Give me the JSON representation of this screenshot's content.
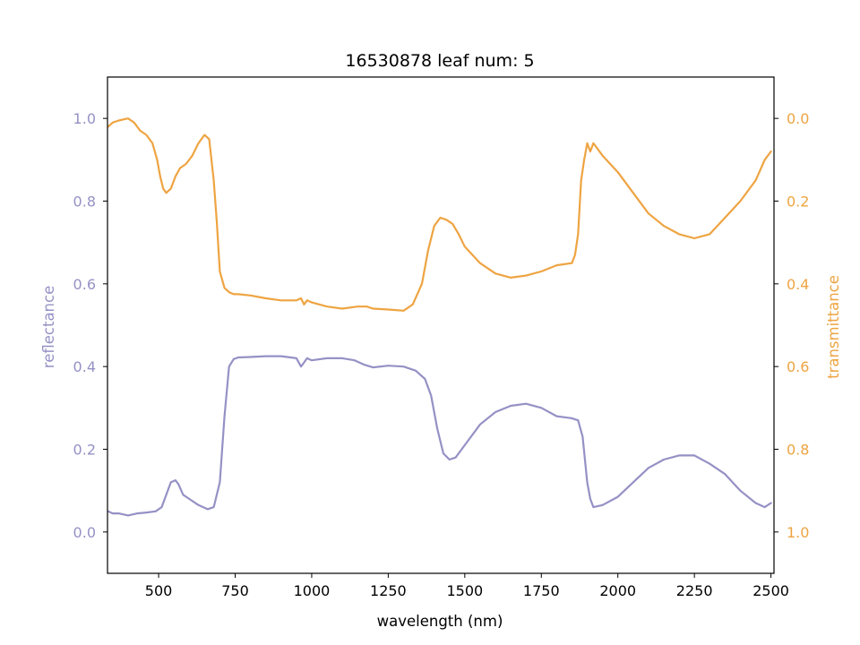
{
  "chart_data": {
    "type": "line",
    "title": "16530878 leaf num: 5",
    "xlabel": "wavelength (nm)",
    "xlim": [
      333,
      2510
    ],
    "x_ticks": [
      500,
      750,
      1000,
      1250,
      1500,
      1750,
      2000,
      2250,
      2500
    ],
    "grid": false,
    "legend": "none",
    "axes": {
      "left": {
        "label": "reflectance",
        "range": [
          -0.1,
          1.1
        ],
        "ticks": [
          "0.0",
          "0.2",
          "0.4",
          "0.6",
          "0.8",
          "1.0"
        ],
        "color": "#9591c5"
      },
      "right": {
        "label": "transmittance",
        "range": [
          -0.1,
          1.1
        ],
        "inverted": true,
        "ticks": [
          "0.0",
          "0.2",
          "0.4",
          "0.6",
          "0.8",
          "1.0"
        ],
        "color": "#eea442"
      }
    },
    "series": [
      {
        "axis": "left",
        "color": "#9591c5",
        "x": [
          335,
          350,
          370,
          400,
          430,
          460,
          490,
          510,
          525,
          540,
          555,
          565,
          580,
          600,
          630,
          660,
          680,
          700,
          715,
          730,
          745,
          760,
          800,
          850,
          900,
          950,
          965,
          975,
          985,
          1000,
          1050,
          1100,
          1140,
          1170,
          1200,
          1250,
          1300,
          1340,
          1370,
          1390,
          1410,
          1430,
          1450,
          1470,
          1500,
          1550,
          1600,
          1650,
          1700,
          1750,
          1800,
          1850,
          1870,
          1885,
          1900,
          1910,
          1920,
          1950,
          2000,
          2050,
          2100,
          2150,
          2200,
          2250,
          2300,
          2350,
          2400,
          2450,
          2480,
          2500
        ],
        "values": [
          0.05,
          0.045,
          0.045,
          0.04,
          0.045,
          0.047,
          0.05,
          0.06,
          0.09,
          0.12,
          0.125,
          0.115,
          0.09,
          0.08,
          0.065,
          0.055,
          0.06,
          0.12,
          0.28,
          0.4,
          0.418,
          0.422,
          0.423,
          0.425,
          0.425,
          0.42,
          0.4,
          0.41,
          0.42,
          0.415,
          0.42,
          0.42,
          0.415,
          0.405,
          0.398,
          0.402,
          0.4,
          0.39,
          0.37,
          0.33,
          0.25,
          0.19,
          0.175,
          0.18,
          0.21,
          0.26,
          0.29,
          0.305,
          0.31,
          0.3,
          0.28,
          0.275,
          0.27,
          0.23,
          0.12,
          0.08,
          0.06,
          0.065,
          0.085,
          0.12,
          0.155,
          0.175,
          0.185,
          0.185,
          0.165,
          0.14,
          0.1,
          0.07,
          0.06,
          0.07
        ]
      },
      {
        "axis": "right",
        "color": "#eea442",
        "x": [
          335,
          350,
          370,
          400,
          420,
          440,
          460,
          480,
          495,
          505,
          515,
          525,
          540,
          555,
          570,
          590,
          610,
          630,
          650,
          665,
          680,
          690,
          700,
          715,
          730,
          745,
          760,
          800,
          850,
          900,
          950,
          965,
          975,
          985,
          1000,
          1050,
          1100,
          1150,
          1180,
          1200,
          1250,
          1300,
          1330,
          1360,
          1380,
          1400,
          1420,
          1440,
          1460,
          1480,
          1500,
          1550,
          1600,
          1650,
          1700,
          1750,
          1800,
          1850,
          1860,
          1870,
          1880,
          1890,
          1900,
          1910,
          1920,
          1950,
          2000,
          2050,
          2100,
          2150,
          2200,
          2250,
          2300,
          2350,
          2400,
          2450,
          2480,
          2500
        ],
        "values": [
          0.02,
          0.01,
          0.005,
          0.0,
          0.01,
          0.03,
          0.04,
          0.06,
          0.1,
          0.14,
          0.17,
          0.18,
          0.17,
          0.14,
          0.12,
          0.11,
          0.09,
          0.06,
          0.04,
          0.05,
          0.15,
          0.25,
          0.37,
          0.41,
          0.42,
          0.425,
          0.425,
          0.428,
          0.435,
          0.44,
          0.44,
          0.435,
          0.45,
          0.44,
          0.445,
          0.455,
          0.46,
          0.455,
          0.455,
          0.46,
          0.462,
          0.465,
          0.45,
          0.4,
          0.32,
          0.26,
          0.24,
          0.245,
          0.255,
          0.28,
          0.31,
          0.35,
          0.375,
          0.385,
          0.38,
          0.37,
          0.355,
          0.35,
          0.33,
          0.28,
          0.15,
          0.1,
          0.06,
          0.08,
          0.06,
          0.09,
          0.13,
          0.18,
          0.23,
          0.26,
          0.28,
          0.29,
          0.28,
          0.24,
          0.2,
          0.15,
          0.1,
          0.08
        ]
      }
    ]
  }
}
